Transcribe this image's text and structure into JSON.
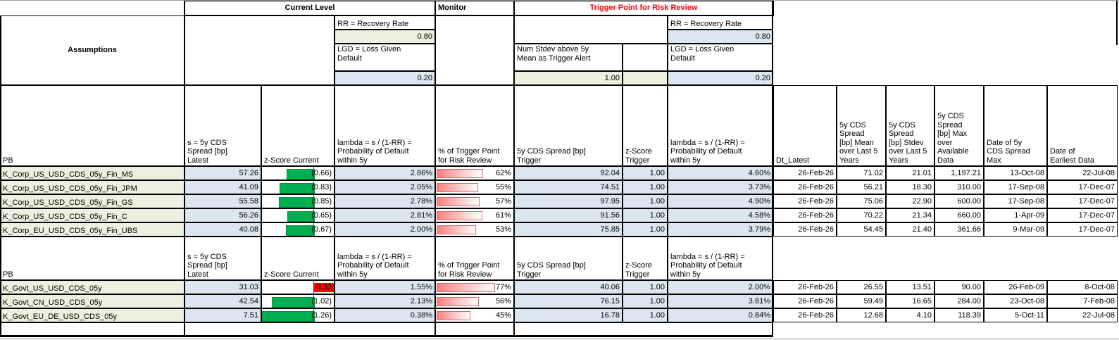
{
  "header": {
    "current_level": "Current Level",
    "monitor": "Monitor",
    "trigger": "Trigger Point for Risk Review"
  },
  "assumptions": {
    "label": "Assumptions",
    "current": {
      "rr_label": "RR = Recovery Rate",
      "rr_value": "0.80",
      "lgd_label": "LGD = Loss Given\nDefault",
      "lgd_value": "0.20"
    },
    "trigger": {
      "stdev_label": "Num Stdev above 5y\nMean as Trigger Alert",
      "stdev_value": "1.00",
      "rr_label": "RR = Recovery Rate",
      "rr_value": "0.80",
      "lgd_label": "LGD = Loss Given\nDefault",
      "lgd_value": "0.20"
    }
  },
  "columns": [
    {
      "key": "pb",
      "label": "PB"
    },
    {
      "key": "latest",
      "label": "s = 5y CDS\nSpread [bp]\nLatest"
    },
    {
      "key": "z",
      "label": "z-Score Current"
    },
    {
      "key": "lambda",
      "label": "lambda = s / (1-RR) =\nProbability of Default\nwithin 5y"
    },
    {
      "key": "pct",
      "label": "% of Trigger Point\nfor Risk Review"
    },
    {
      "key": "trigger",
      "label": "5y CDS Spread [bp]\nTrigger"
    },
    {
      "key": "ztrigger",
      "label": "z-Score\nTrigger"
    },
    {
      "key": "lambda_trigger",
      "label": "lambda = s / (1-RR) =\nProbability of Default\nwithin 5y"
    },
    {
      "key": "dt",
      "label": "Dt_Latest"
    },
    {
      "key": "mean",
      "label": "5y CDS\nSpread\n[bp] Mean\nover Last 5\nYears"
    },
    {
      "key": "stdev",
      "label": "5y CDS\nSpread\n[bp] Stdev\nover Last 5\nYears"
    },
    {
      "key": "max",
      "label": "5y CDS\nSpread\n[bp] Max\nover\nAvailable\nData"
    },
    {
      "key": "date_max",
      "label": "Date of 5y\nCDS Spread\nMax"
    },
    {
      "key": "date_earliest",
      "label": "Date of\nEarliest Data"
    }
  ],
  "sections": [
    {
      "rows": [
        {
          "pb": "K_Corp_US_USD_CDS_05y_Fin_MS",
          "latest": "57.26",
          "z": -0.66,
          "z_display": "(0.66)",
          "lambda": "2.86%",
          "pct": 62,
          "pct_display": "62%",
          "trigger": "92.04",
          "ztrigger": "1.00",
          "lambda_trigger": "4.60%",
          "dt": "26-Feb-26",
          "mean": "71.02",
          "stdev": "21.01",
          "max": "1,197.21",
          "date_max": "13-Oct-08",
          "date_earliest": "22-Jul-08"
        },
        {
          "pb": "K_Corp_US_USD_CDS_05y_Fin_JPM",
          "latest": "41.09",
          "z": -0.83,
          "z_display": "(0.83)",
          "lambda": "2.05%",
          "pct": 55,
          "pct_display": "55%",
          "trigger": "74.51",
          "ztrigger": "1.00",
          "lambda_trigger": "3.73%",
          "dt": "26-Feb-26",
          "mean": "56.21",
          "stdev": "18.30",
          "max": "310.00",
          "date_max": "17-Sep-08",
          "date_earliest": "17-Dec-07"
        },
        {
          "pb": "K_Corp_US_USD_CDS_05y_Fin_GS",
          "latest": "55.58",
          "z": -0.85,
          "z_display": "(0.85)",
          "lambda": "2.78%",
          "pct": 57,
          "pct_display": "57%",
          "trigger": "97.95",
          "ztrigger": "1.00",
          "lambda_trigger": "4.90%",
          "dt": "26-Feb-26",
          "mean": "75.06",
          "stdev": "22.90",
          "max": "600.00",
          "date_max": "17-Sep-08",
          "date_earliest": "17-Dec-07"
        },
        {
          "pb": "K_Corp_US_USD_CDS_05y_Fin_C",
          "latest": "56.26",
          "z": -0.65,
          "z_display": "(0.65)",
          "lambda": "2.81%",
          "pct": 61,
          "pct_display": "61%",
          "trigger": "91.56",
          "ztrigger": "1.00",
          "lambda_trigger": "4.58%",
          "dt": "26-Feb-26",
          "mean": "70.22",
          "stdev": "21.34",
          "max": "660.00",
          "date_max": "1-Apr-09",
          "date_earliest": "17-Dec-07"
        },
        {
          "pb": "K_Corp_EU_USD_CDS_05y_Fin_UBS",
          "latest": "40.08",
          "z": -0.67,
          "z_display": "(0.67)",
          "lambda": "2.00%",
          "pct": 53,
          "pct_display": "53%",
          "trigger": "75.85",
          "ztrigger": "1.00",
          "lambda_trigger": "3.79%",
          "dt": "26-Feb-26",
          "mean": "54.45",
          "stdev": "21.40",
          "max": "361.66",
          "date_max": "9-Mar-09",
          "date_earliest": "17-Dec-07"
        }
      ]
    },
    {
      "rows": [
        {
          "pb": "K_Govt_US_USD_CDS_05y",
          "latest": "31.03",
          "z": 0.33,
          "z_display": "0.33",
          "lambda": "1.55%",
          "pct": 77,
          "pct_display": "77%",
          "trigger": "40.06",
          "ztrigger": "1.00",
          "lambda_trigger": "2.00%",
          "dt": "26-Feb-26",
          "mean": "26.55",
          "stdev": "13.51",
          "max": "90.00",
          "date_max": "26-Feb-09",
          "date_earliest": "8-Oct-08"
        },
        {
          "pb": "K_Govt_CN_USD_CDS_05y",
          "latest": "42.54",
          "z": -1.02,
          "z_display": "(1.02)",
          "lambda": "2.13%",
          "pct": 56,
          "pct_display": "56%",
          "trigger": "76.15",
          "ztrigger": "1.00",
          "lambda_trigger": "3.81%",
          "dt": "26-Feb-26",
          "mean": "59.49",
          "stdev": "16.65",
          "max": "284.00",
          "date_max": "23-Oct-08",
          "date_earliest": "7-Feb-08"
        },
        {
          "pb": "K_Govt_EU_DE_USD_CDS_05y",
          "latest": "7.51",
          "z": -1.26,
          "z_display": "(1.26)",
          "lambda": "0.38%",
          "pct": 45,
          "pct_display": "45%",
          "trigger": "16.78",
          "ztrigger": "1.00",
          "lambda_trigger": "0.84%",
          "dt": "26-Feb-26",
          "mean": "12.68",
          "stdev": "4.10",
          "max": "118.39",
          "date_max": "5-Oct-11",
          "date_earliest": "22-Jul-08"
        }
      ]
    }
  ],
  "colors": {
    "trigger_title": "#FF0000",
    "label_bg": "#EBF1DE",
    "value_bg": "#DCE6F1",
    "neg_bar": "#00B050",
    "pos_bar": "#FF0000",
    "pct_bar": "#F97F7F"
  }
}
